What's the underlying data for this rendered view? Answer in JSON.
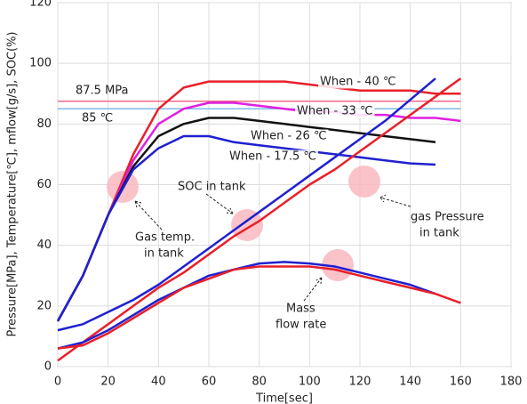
{
  "chart_data": {
    "type": "line",
    "xlabel": "Time[sec]",
    "ylabel": "Pressure[MPa], Temperature[℃], mflow[g/s], SOC(%)",
    "x": [
      0,
      10,
      20,
      30,
      40,
      50,
      60,
      70,
      80,
      90,
      100,
      110,
      120,
      130,
      140,
      150,
      160
    ],
    "series": [
      {
        "color": "#e8202a",
        "values": [
          15,
          30,
          50,
          70,
          85,
          92,
          94,
          94,
          94,
          94,
          93,
          92,
          91,
          91,
          91,
          90,
          90
        ]
      },
      {
        "color": "#e020e0",
        "values": [
          15,
          30,
          50,
          68,
          80,
          85,
          87,
          87,
          86,
          85,
          84,
          84,
          83,
          83,
          82,
          82,
          81
        ]
      },
      {
        "color": "#111111",
        "values": [
          15,
          30,
          50,
          66,
          76,
          80,
          82,
          82,
          81,
          80,
          79,
          78,
          77,
          76,
          75,
          74,
          null
        ]
      },
      {
        "color": "#2020d0",
        "values": [
          15,
          30,
          50,
          65,
          72,
          76,
          76,
          74,
          73,
          72,
          71,
          70,
          69,
          68,
          67,
          66.6,
          null
        ]
      },
      {
        "color": "#2020d0",
        "values": [
          12,
          14,
          18,
          22,
          27,
          33,
          39,
          45,
          51,
          57,
          63,
          69,
          75,
          81,
          88,
          95,
          null
        ]
      },
      {
        "color": "#e8202a",
        "values": [
          2,
          8,
          14,
          20,
          26,
          31,
          37,
          43,
          48,
          54,
          60,
          65,
          71,
          77,
          83,
          89,
          95
        ]
      },
      {
        "color": "#2020d0",
        "values": [
          6,
          8,
          12,
          17,
          22,
          26,
          30,
          32,
          34,
          34.5,
          34,
          33,
          31,
          29,
          27,
          24,
          null
        ]
      },
      {
        "color": "#e8202a",
        "values": [
          6,
          7,
          11,
          16,
          21,
          26,
          29,
          32,
          33,
          33,
          33,
          32,
          30,
          28,
          26,
          24,
          21
        ]
      }
    ],
    "reference_lines": [
      {
        "label": "87.5 MPa",
        "value": 87.5,
        "color": "#f06a8a"
      },
      {
        "label": "85 ℃",
        "value": 85,
        "color": "#7fb8e8"
      }
    ],
    "annotations": [
      [
        "When - 40 ℃"
      ],
      [
        "When - 33 ℃"
      ],
      [
        "When - 26 ℃"
      ],
      [
        "When - 17.5 ℃"
      ],
      [
        "SOC in tank"
      ],
      [
        "Gas temp.",
        "in tank"
      ],
      [
        "gas Pressure",
        "in tank"
      ],
      [
        "Mass",
        "flow rate"
      ]
    ],
    "xlim": [
      0,
      180
    ],
    "xticks": [
      0,
      20,
      40,
      60,
      80,
      100,
      120,
      140,
      160,
      180
    ],
    "ylim": [
      0,
      120
    ],
    "yticks": [
      0,
      20,
      40,
      60,
      80,
      100,
      120
    ],
    "grid": true
  }
}
